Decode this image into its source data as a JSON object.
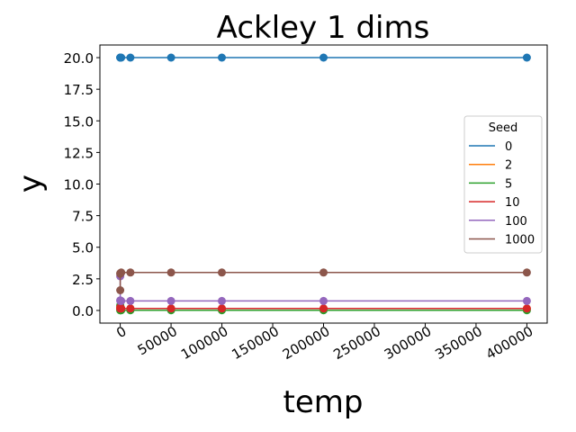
{
  "chart_data": {
    "type": "line",
    "title": "Ackley 1 dims",
    "xlabel": "temp",
    "ylabel": "y",
    "xlim": [
      -20000,
      420000
    ],
    "ylim": [
      -1.0,
      21.0
    ],
    "x_ticks": [
      0,
      50000,
      100000,
      150000,
      200000,
      250000,
      300000,
      350000,
      400000
    ],
    "y_ticks": [
      0.0,
      2.5,
      5.0,
      7.5,
      10.0,
      12.5,
      15.0,
      17.5,
      20.0
    ],
    "x_tick_labels": [
      "0",
      "50000",
      "100000",
      "150000",
      "200000",
      "250000",
      "300000",
      "350000",
      "400000"
    ],
    "y_tick_labels": [
      "0.0",
      "2.5",
      "5.0",
      "7.5",
      "10.0",
      "12.5",
      "15.0",
      "17.5",
      "20.0"
    ],
    "x": [
      1,
      10,
      100,
      1000,
      10000,
      50000,
      100000,
      200000,
      400000
    ],
    "legend": {
      "title": "Seed",
      "position": "center-right"
    },
    "grid": false,
    "series": [
      {
        "name": "0",
        "color": "#1f77b4",
        "values": [
          20.0,
          20.0,
          20.0,
          20.0,
          20.0,
          20.0,
          20.0,
          20.0,
          20.0
        ]
      },
      {
        "name": "2",
        "color": "#ff7f0e",
        "values": [
          0.3,
          0.15,
          0.15,
          0.15,
          0.15,
          0.15,
          0.15,
          0.15,
          0.15
        ]
      },
      {
        "name": "5",
        "color": "#2ca02c",
        "values": [
          0.4,
          0.02,
          0.02,
          0.02,
          0.02,
          0.02,
          0.02,
          0.02,
          0.02
        ]
      },
      {
        "name": "10",
        "color": "#d62728",
        "values": [
          0.25,
          0.15,
          0.15,
          0.15,
          0.15,
          0.15,
          0.15,
          0.15,
          0.15
        ]
      },
      {
        "name": "100",
        "color": "#9467bd",
        "values": [
          2.7,
          0.8,
          0.75,
          0.75,
          0.75,
          0.75,
          0.75,
          0.75,
          0.75
        ]
      },
      {
        "name": "1000",
        "color": "#8c564b",
        "values": [
          1.6,
          2.9,
          2.95,
          3.0,
          3.0,
          3.0,
          3.0,
          3.0,
          3.0
        ]
      }
    ]
  }
}
